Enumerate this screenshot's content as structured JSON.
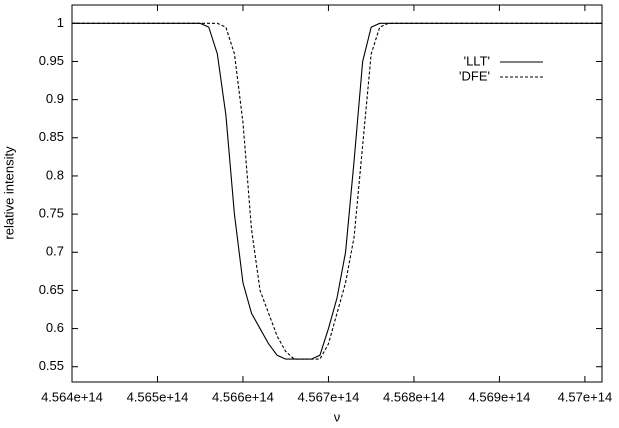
{
  "chart_data": {
    "type": "line",
    "xlabel": "ν",
    "ylabel": "relative intensity",
    "x": [
      456400000000000,
      456550000000000,
      456560000000000,
      456570000000000,
      456580000000000,
      456590000000000,
      456600000000000,
      456610000000000,
      456620000000000,
      456630000000000,
      456640000000000,
      456650000000000,
      456660000000000,
      456670000000000,
      456680000000000,
      456690000000000,
      456700000000000,
      456710000000000,
      456720000000000,
      456730000000000,
      456740000000000,
      456750000000000,
      456760000000000,
      456770000000000,
      457020000000000
    ],
    "series": [
      {
        "name": "'LLT'",
        "color": "#000000",
        "dash": "solid",
        "values": [
          1,
          1,
          0.995,
          0.96,
          0.88,
          0.75,
          0.66,
          0.62,
          0.6,
          0.58,
          0.565,
          0.56,
          0.56,
          0.56,
          0.56,
          0.565,
          0.6,
          0.64,
          0.7,
          0.82,
          0.95,
          0.995,
          1,
          1,
          1
        ]
      },
      {
        "name": "'DFE'",
        "color": "#000000",
        "dash": "dashed",
        "values": [
          1,
          1,
          1,
          1,
          0.995,
          0.96,
          0.87,
          0.73,
          0.65,
          0.62,
          0.59,
          0.57,
          0.56,
          0.56,
          0.56,
          0.56,
          0.58,
          0.62,
          0.66,
          0.72,
          0.84,
          0.96,
          0.995,
          1,
          1
        ]
      }
    ],
    "xlim": [
      456400000000000,
      457020000000000
    ],
    "xticks": [
      {
        "value": 456400000000000,
        "label": "4.564e+14"
      },
      {
        "value": 456500000000000,
        "label": "4.565e+14"
      },
      {
        "value": 456600000000000,
        "label": "4.566e+14"
      },
      {
        "value": 456700000000000,
        "label": "4.567e+14"
      },
      {
        "value": 456800000000000,
        "label": "4.568e+14"
      },
      {
        "value": 456900000000000,
        "label": "4.569e+14"
      },
      {
        "value": 457000000000000,
        "label": "4.57e+14"
      }
    ],
    "ylim": [
      0.53,
      1.024
    ],
    "yticks": [
      0.55,
      0.6,
      0.65,
      0.7,
      0.75,
      0.8,
      0.85,
      0.9,
      0.95,
      1
    ],
    "legend": "upper-right"
  }
}
